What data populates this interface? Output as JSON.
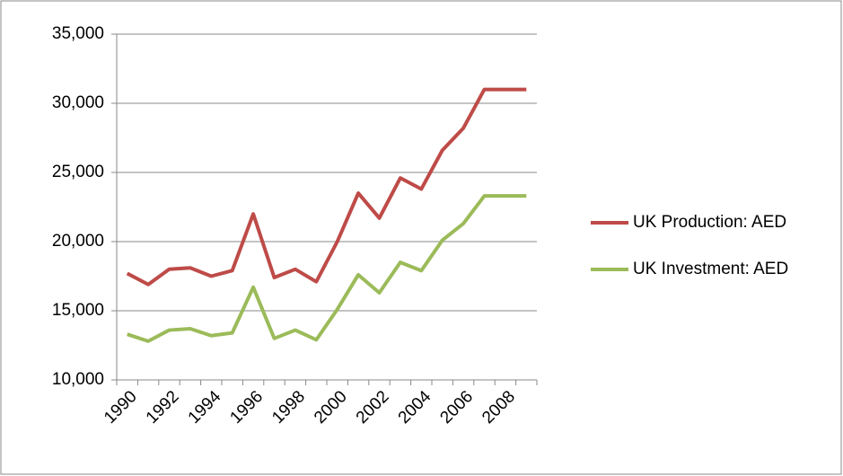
{
  "chart_data": {
    "type": "line",
    "categories": [
      "1990",
      null,
      "1992",
      null,
      "1994",
      null,
      "1996",
      null,
      "1998",
      null,
      "2000",
      null,
      "2002",
      null,
      "2004",
      null,
      "2006",
      null,
      "2008",
      null
    ],
    "series": [
      {
        "name": "UK Production:  AED",
        "color": "#be4b48",
        "values": [
          17700,
          16900,
          18000,
          18100,
          17500,
          17900,
          22000,
          17400,
          18000,
          17100,
          20000,
          23500,
          21700,
          24600,
          23800,
          26600,
          28200,
          31000,
          31000,
          31000
        ]
      },
      {
        "name": "UK Investment:  AED",
        "color": "#9bbb59",
        "values": [
          13300,
          12800,
          13600,
          13700,
          13200,
          13400,
          16700,
          13000,
          13600,
          12900,
          15100,
          17600,
          16300,
          18500,
          17900,
          20100,
          21300,
          23300,
          23300,
          23300
        ]
      }
    ],
    "ylim": [
      10000,
      35000
    ],
    "yticks": [
      {
        "value": 10000,
        "label": "10,000"
      },
      {
        "value": 15000,
        "label": "15,000"
      },
      {
        "value": 20000,
        "label": "20,000"
      },
      {
        "value": 25000,
        "label": "25,000"
      },
      {
        "value": 30000,
        "label": "30,000"
      },
      {
        "value": 35000,
        "label": "35,000"
      }
    ],
    "grid": true,
    "legend": "right"
  }
}
